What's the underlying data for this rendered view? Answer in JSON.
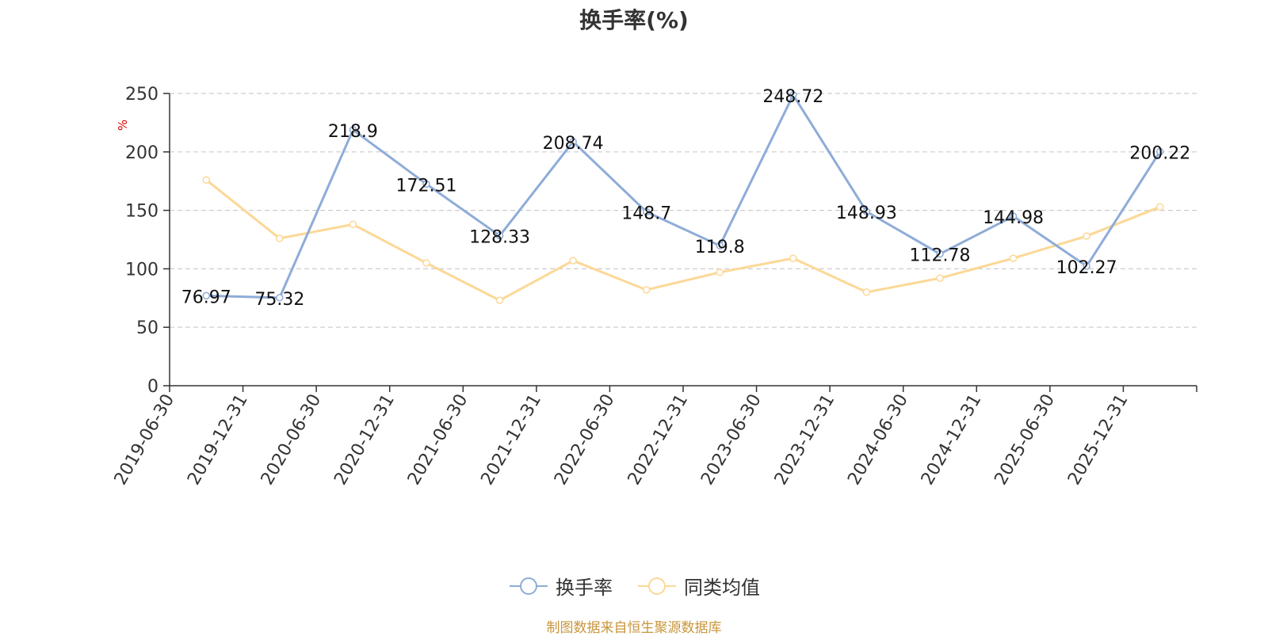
{
  "source_note": "制图数据来自恒生聚源数据库",
  "colors": {
    "series_primary": "#8eacd8",
    "series_secondary": "#fcd896",
    "grid": "#cccccc",
    "axis": "#333333",
    "unit": "#e00000",
    "source": "#c8963c"
  },
  "chart_data": {
    "type": "line",
    "title": "换手率(%)",
    "ylabel": "%",
    "ylim": [
      0,
      250
    ],
    "yticks": [
      0,
      50,
      100,
      150,
      200,
      250
    ],
    "grid": true,
    "legend_position": "bottom-center",
    "categories": [
      "2019-06-30",
      "2019-12-31",
      "2020-06-30",
      "2020-12-31",
      "2021-06-30",
      "2021-12-31",
      "2022-06-30",
      "2022-12-31",
      "2023-06-30",
      "2023-12-31",
      "2024-06-30",
      "2024-12-31",
      "2025-06-30",
      "2025-12-31"
    ],
    "series": [
      {
        "name": "换手率",
        "values": [
          76.97,
          75.32,
          218.9,
          172.51,
          128.33,
          208.74,
          148.7,
          119.8,
          248.72,
          148.93,
          112.78,
          144.98,
          102.27,
          200.22
        ],
        "labels": [
          "76.97",
          "75.32",
          "218.9",
          "172.51",
          "128.33",
          "208.74",
          "148.7",
          "119.8",
          "248.72",
          "148.93",
          "112.78",
          "144.98",
          "102.27",
          "200.22"
        ]
      },
      {
        "name": "同类均值",
        "values": [
          176,
          126,
          138,
          105,
          73,
          107,
          82,
          97,
          109,
          80,
          92,
          109,
          128,
          153
        ]
      }
    ]
  }
}
